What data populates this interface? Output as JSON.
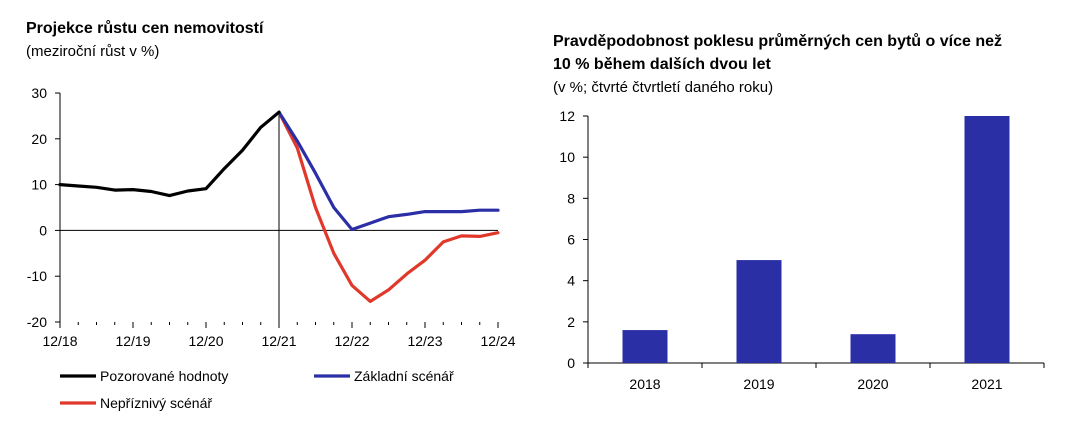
{
  "chart_data": [
    {
      "type": "line",
      "title": "Projekce růstu cen nemovitostí",
      "subtitle": "(meziroční růst v %)",
      "xlabel": "",
      "ylabel": "",
      "ylim": [
        -20,
        30
      ],
      "yticks": [
        "30",
        "20",
        "10",
        "0",
        "-10",
        "-20"
      ],
      "xticks": [
        "12/18",
        "12/19",
        "12/20",
        "12/21",
        "12/22",
        "12/23",
        "12/24"
      ],
      "grid": false,
      "legend_position": "bottom",
      "colors": {
        "observed": "#000000",
        "baseline": "#2b2fa6",
        "adverse": "#e0392b"
      },
      "series": [
        {
          "name": "Pozorované hodnoty",
          "x": [
            "12/18",
            "3/19",
            "6/19",
            "9/19",
            "12/19",
            "3/20",
            "6/20",
            "9/20",
            "12/20",
            "3/21",
            "6/21",
            "9/21",
            "12/21"
          ],
          "values": [
            10,
            9.7,
            9.4,
            8.8,
            8.9,
            8.5,
            7.6,
            8.6,
            9.1,
            13.5,
            17.5,
            22.5,
            25.8
          ]
        },
        {
          "name": "Základní scénář",
          "x": [
            "12/21",
            "3/22",
            "6/22",
            "9/22",
            "12/22",
            "3/23",
            "6/23",
            "9/23",
            "12/23",
            "3/24",
            "6/24",
            "9/24",
            "12/24"
          ],
          "values": [
            25.8,
            19.5,
            12.5,
            5,
            0.2,
            1.6,
            3,
            3.5,
            4.1,
            4.1,
            4.1,
            4.4,
            4.4
          ]
        },
        {
          "name": "Nepříznivý scénář",
          "x": [
            "12/21",
            "3/22",
            "6/22",
            "9/22",
            "12/22",
            "3/23",
            "6/23",
            "9/23",
            "12/23",
            "3/24",
            "6/24",
            "9/24",
            "12/24"
          ],
          "values": [
            25.8,
            18,
            5,
            -5,
            -12,
            -15.5,
            -13,
            -9.5,
            -6.5,
            -2.5,
            -1.2,
            -1.3,
            -0.5
          ]
        }
      ]
    },
    {
      "type": "bar",
      "title_lines": [
        "Pravděpodobnost poklesu průměrných cen bytů o více než",
        "10 % během dalších dvou let"
      ],
      "subtitle": "(v %; čtvrté čtvrtletí daného roku)",
      "xlabel": "",
      "ylabel": "",
      "ylim": [
        0,
        12
      ],
      "yticks": [
        "12",
        "10",
        "8",
        "6",
        "4",
        "2",
        "0"
      ],
      "categories": [
        "2018",
        "2019",
        "2020",
        "2021"
      ],
      "values": [
        1.6,
        5,
        1.4,
        12
      ],
      "grid": false,
      "color": "#2b2fa6"
    }
  ]
}
